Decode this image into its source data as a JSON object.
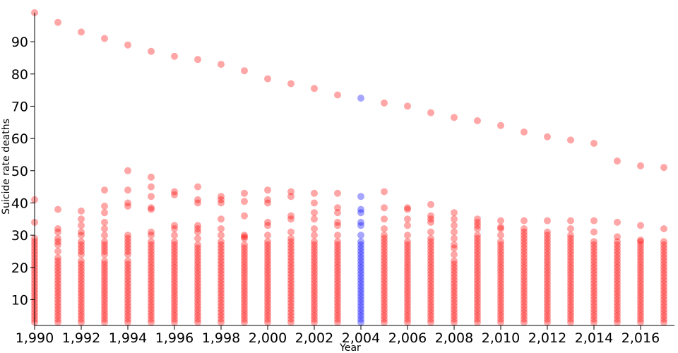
{
  "chart_data": {
    "type": "scatter",
    "title": "",
    "xlabel": "Year",
    "ylabel": "Suicide rate deaths",
    "xlim": [
      1990,
      2017
    ],
    "ylim": [
      2,
      99
    ],
    "x_ticks": [
      "1,990",
      "1,992",
      "1,994",
      "1,996",
      "1,998",
      "2,000",
      "2,002",
      "2,004",
      "2,006",
      "2,008",
      "2,010",
      "2,012",
      "2,014",
      "2,016"
    ],
    "y_ticks": [
      "10",
      "20",
      "30",
      "40",
      "50",
      "60",
      "70",
      "80",
      "90"
    ],
    "highlight_year": 2004,
    "colors": {
      "default": "#ff0000",
      "highlight": "#0000ff"
    },
    "point_opacity": 0.35,
    "grid": false,
    "legend": "none",
    "series": [
      {
        "x": 1990,
        "values": [
          99,
          41,
          34,
          29,
          28,
          27,
          26,
          25,
          24,
          23,
          22,
          21,
          20,
          19,
          18,
          17,
          16,
          15,
          14,
          13,
          12,
          11,
          10,
          9,
          8,
          7,
          6,
          5,
          4,
          3
        ]
      },
      {
        "x": 1991,
        "values": [
          96,
          38,
          32,
          31,
          29,
          28,
          27,
          25,
          23,
          22,
          21,
          20,
          19,
          18,
          17,
          16,
          15,
          14,
          13,
          12,
          11,
          10,
          9,
          8,
          7,
          6,
          5,
          4,
          3
        ]
      },
      {
        "x": 1992,
        "values": [
          93,
          37.5,
          35,
          33,
          31,
          30,
          28,
          27,
          26,
          25,
          24,
          22,
          21,
          20,
          19,
          18,
          17,
          16,
          15,
          14,
          13,
          12,
          11,
          10,
          9,
          8,
          7,
          6,
          5,
          4,
          3
        ]
      },
      {
        "x": 1993,
        "values": [
          91,
          44,
          39,
          37,
          34,
          32,
          30,
          28,
          27,
          26,
          25,
          24,
          22,
          21,
          20,
          19,
          18,
          17,
          16,
          15,
          14,
          13,
          12,
          11,
          10,
          9,
          8,
          7,
          6,
          5,
          4,
          3
        ]
      },
      {
        "x": 1994,
        "values": [
          89,
          50,
          44,
          40,
          39,
          30,
          29,
          28,
          27,
          26,
          25,
          24,
          22,
          21,
          20,
          19,
          18,
          17,
          16,
          15,
          14,
          13,
          12,
          11,
          10,
          9,
          8,
          7,
          6,
          5,
          4,
          3
        ]
      },
      {
        "x": 1995,
        "values": [
          87,
          48,
          45,
          42,
          38.5,
          38,
          31,
          30,
          28,
          27,
          26,
          25,
          24,
          23,
          22,
          21,
          20,
          19,
          18,
          17,
          16,
          15,
          14,
          13,
          12,
          11,
          10,
          9,
          8,
          7,
          6,
          5,
          4,
          3
        ]
      },
      {
        "x": 1996,
        "values": [
          85.5,
          43.5,
          42.5,
          33,
          32,
          30,
          28,
          27,
          26,
          25,
          24,
          23,
          22,
          21,
          20,
          19,
          18,
          17,
          16,
          15,
          14,
          13,
          12,
          11,
          10,
          9,
          8,
          7,
          6,
          5,
          4,
          3
        ]
      },
      {
        "x": 1997,
        "values": [
          84.5,
          45,
          41,
          40,
          33,
          32,
          31,
          29,
          27,
          26,
          25,
          24,
          23,
          22,
          21,
          20,
          19,
          18,
          17,
          16,
          15,
          14,
          13,
          12,
          11,
          10,
          9,
          8,
          7,
          6,
          5,
          4,
          3
        ]
      },
      {
        "x": 1998,
        "values": [
          83,
          42,
          41,
          40,
          35,
          32,
          30,
          28,
          27,
          26,
          25,
          24,
          23,
          22,
          21,
          20,
          19,
          18,
          17,
          16,
          15,
          14,
          13,
          12,
          11,
          10,
          9,
          8,
          7,
          6,
          5,
          4,
          3
        ]
      },
      {
        "x": 1999,
        "values": [
          81,
          43,
          40.5,
          36,
          30,
          29.5,
          29,
          27,
          26,
          25,
          24,
          23,
          22,
          21,
          20,
          19,
          18,
          17,
          16,
          15,
          14,
          13,
          12,
          11,
          10,
          9,
          8,
          7,
          6,
          5,
          4,
          3
        ]
      },
      {
        "x": 2000,
        "values": [
          78.5,
          44,
          41,
          40,
          34,
          33,
          30,
          28,
          27,
          26,
          25,
          24,
          23,
          22,
          21,
          20,
          19,
          18,
          17,
          16,
          15,
          14,
          13,
          12,
          11,
          10,
          9,
          8,
          7,
          6,
          5,
          4,
          3
        ]
      },
      {
        "x": 2001,
        "values": [
          77,
          43.5,
          42,
          36,
          35,
          31,
          29,
          28,
          27,
          26,
          25,
          24,
          23,
          22,
          21,
          20,
          19,
          18,
          17,
          16,
          15,
          14,
          13,
          12,
          11,
          10,
          9,
          8,
          7,
          6,
          5,
          4,
          3
        ]
      },
      {
        "x": 2002,
        "values": [
          75.5,
          43,
          40,
          37,
          35,
          32,
          30,
          28,
          27,
          26,
          25,
          24,
          23,
          22,
          21,
          20,
          19,
          18,
          17,
          16,
          15,
          14,
          13,
          12,
          11,
          10,
          9,
          8,
          7,
          6,
          5,
          4,
          3
        ]
      },
      {
        "x": 2003,
        "values": [
          73.5,
          43,
          38.5,
          37,
          34,
          33,
          30,
          28,
          27,
          26,
          25,
          24,
          23,
          22,
          21,
          20,
          19,
          18,
          17,
          16,
          15,
          14,
          13,
          12,
          11,
          10,
          9,
          8,
          7,
          6,
          5,
          4,
          3
        ]
      },
      {
        "x": 2004,
        "values": [
          72.5,
          42,
          38,
          37,
          34,
          33,
          30,
          28,
          27,
          26,
          25,
          24,
          23,
          22,
          21,
          20,
          19,
          18,
          17,
          16,
          15,
          14,
          13,
          12,
          11,
          10,
          9,
          8,
          7,
          6,
          5,
          4,
          3
        ]
      },
      {
        "x": 2005,
        "values": [
          71,
          43.5,
          38.5,
          35,
          32,
          30,
          29,
          28,
          27,
          26,
          25,
          24,
          23,
          22,
          21,
          20,
          19,
          18,
          17,
          16,
          15,
          14,
          13,
          12,
          11,
          10,
          9,
          8,
          7,
          6,
          5,
          4,
          3
        ]
      },
      {
        "x": 2006,
        "values": [
          70,
          38.5,
          38,
          35,
          33,
          30,
          28,
          27,
          26,
          25,
          24,
          23,
          22,
          21,
          20,
          19,
          18,
          17,
          16,
          15,
          14,
          13,
          12,
          11,
          10,
          9,
          8,
          7,
          6,
          5,
          4,
          3
        ]
      },
      {
        "x": 2007,
        "values": [
          68,
          39.5,
          36,
          35,
          34,
          31,
          29,
          28,
          27,
          26,
          25,
          24,
          23,
          22,
          21,
          20,
          19,
          18,
          17,
          16,
          15,
          14,
          13,
          12,
          11,
          10,
          9,
          8,
          7,
          6,
          5,
          4,
          3
        ]
      },
      {
        "x": 2008,
        "values": [
          66.5,
          37,
          35,
          33,
          31,
          29,
          27,
          26,
          24,
          22,
          21,
          20,
          19,
          18,
          17,
          16,
          15,
          14,
          13,
          12,
          11,
          10,
          9,
          8,
          7,
          6,
          5,
          4,
          3
        ]
      },
      {
        "x": 2009,
        "values": [
          65.5,
          35,
          34,
          33,
          32,
          30,
          29,
          28,
          27,
          26,
          25,
          24,
          23,
          22,
          21,
          20,
          19,
          18,
          17,
          16,
          15,
          14,
          13,
          12,
          11,
          10,
          9,
          8,
          7,
          6,
          5,
          4,
          3
        ]
      },
      {
        "x": 2010,
        "values": [
          64,
          34.5,
          32.5,
          32,
          30,
          28,
          27,
          26,
          25,
          24,
          23,
          22,
          21,
          20,
          19,
          18,
          17,
          16,
          15,
          14,
          13,
          12,
          11,
          10,
          9,
          8,
          7,
          6,
          5,
          4,
          3
        ]
      },
      {
        "x": 2011,
        "values": [
          62,
          34.5,
          32,
          31,
          30,
          29,
          28,
          27,
          26,
          25,
          24,
          23,
          22,
          21,
          20,
          19,
          18,
          17,
          16,
          15,
          14,
          13,
          12,
          11,
          10,
          9,
          8,
          7,
          6,
          5,
          4,
          3
        ]
      },
      {
        "x": 2012,
        "values": [
          60.5,
          34.5,
          31,
          30,
          29,
          28,
          27,
          26,
          25,
          24,
          23,
          22,
          21,
          20,
          19,
          18,
          17,
          16,
          15,
          14,
          13,
          12,
          11,
          10,
          9,
          8,
          7,
          6,
          5,
          4,
          3
        ]
      },
      {
        "x": 2013,
        "values": [
          59.5,
          34.5,
          32,
          30,
          29,
          28,
          27,
          26,
          25,
          24,
          23,
          22,
          21,
          20,
          19,
          18,
          17,
          16,
          15,
          14,
          13,
          12,
          11,
          10,
          9,
          8,
          7,
          6,
          5,
          4,
          3
        ]
      },
      {
        "x": 2014,
        "values": [
          58.5,
          34.5,
          31,
          28,
          27,
          26,
          25,
          24,
          23,
          22,
          21,
          20,
          19,
          18,
          17,
          16,
          15,
          14,
          13,
          12,
          11,
          10,
          9,
          8,
          7,
          6,
          5,
          4,
          3
        ]
      },
      {
        "x": 2015,
        "values": [
          53,
          34,
          29.5,
          28,
          27,
          26,
          25,
          24,
          23,
          22,
          21,
          20,
          19,
          18,
          17,
          16,
          15,
          14,
          13,
          12,
          11,
          10,
          9,
          8,
          7,
          6,
          5,
          4,
          3
        ]
      },
      {
        "x": 2016,
        "values": [
          51.5,
          33,
          28.5,
          28,
          27,
          26,
          25,
          24,
          23,
          22,
          21,
          20,
          19,
          18,
          17,
          16,
          15,
          14,
          13,
          12,
          11,
          10,
          9,
          8,
          7,
          6,
          5,
          4,
          3
        ]
      },
      {
        "x": 2017,
        "values": [
          51,
          32,
          28,
          27,
          26,
          25,
          24,
          23,
          22,
          21,
          20,
          19,
          18,
          17,
          16,
          15,
          14,
          13,
          12,
          11,
          10,
          9,
          8,
          7,
          6,
          5,
          4,
          3
        ]
      }
    ]
  }
}
